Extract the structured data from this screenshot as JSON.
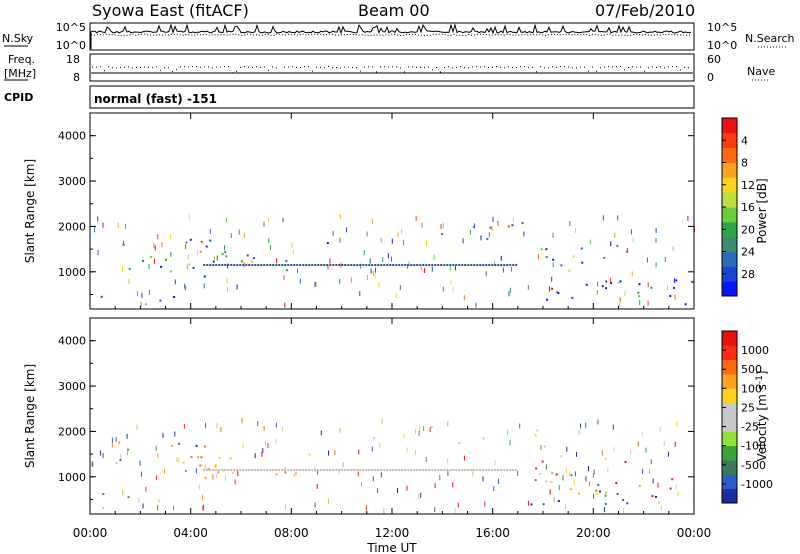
{
  "header": {
    "station": "Syowa East (fitACF)",
    "beam": "Beam 00",
    "date": "07/Feb/2010"
  },
  "top_panels": {
    "nsky_label": "N.Sky",
    "nsky_ticks": [
      "10^5",
      "10^0"
    ],
    "nsearch_label": "N.Search",
    "nsearch_ticks": [
      "10^5",
      "10^0"
    ],
    "freq_label_1": "Freq.",
    "freq_label_2": "[MHz]",
    "freq_ticks": [
      "18",
      "8"
    ],
    "nave_label": "Nave",
    "nave_ticks": [
      "60",
      "0"
    ],
    "cpid_label": "CPID",
    "cpid_text": "normal (fast) -151"
  },
  "chart_data": [
    {
      "type": "heatmap",
      "panel": "power",
      "ylabel": "Slant Range [km]",
      "ylim": [
        180,
        4500
      ],
      "yticks": [
        "1000",
        "2000",
        "3000",
        "4000"
      ],
      "colorbar_label": "Power [dB]",
      "colorbar_ticks": [
        "4",
        "8",
        "12",
        "16",
        "20",
        "24",
        "28"
      ],
      "colorbar_colors": [
        "#0a14ff",
        "#1a44d6",
        "#2a6cb8",
        "#3a8c6e",
        "#2ea84a",
        "#66d03a",
        "#b8e03a",
        "#ffd21e",
        "#ffa01e",
        "#ff6a10",
        "#ff3a10",
        "#ee1010"
      ]
    },
    {
      "type": "heatmap",
      "panel": "velocity",
      "ylabel": "Slant Range [km]",
      "ylim": [
        180,
        4500
      ],
      "yticks": [
        "1000",
        "2000",
        "3000",
        "4000"
      ],
      "colorbar_label": "Velocity [m s",
      "colorbar_label_sup": "-1",
      "colorbar_label_end": "]",
      "colorbar_ticks": [
        "1000",
        "500",
        "100",
        "25",
        "-25",
        "-100",
        "-500",
        "-1000"
      ],
      "colorbar_colors": [
        "#1a2ea0",
        "#2e5cc8",
        "#3a7a5a",
        "#3aa63a",
        "#8ee23a",
        "#c8c8c8",
        "#c8c8c8",
        "#ffd21e",
        "#ffa01e",
        "#ff6a10",
        "#ff2a10",
        "#e81010"
      ]
    }
  ],
  "x_axis": {
    "ticks": [
      "00:00",
      "04:00",
      "08:00",
      "12:00",
      "16:00",
      "20:00",
      "00:00"
    ],
    "label": "Time UT",
    "range_hours": [
      0,
      24
    ]
  }
}
